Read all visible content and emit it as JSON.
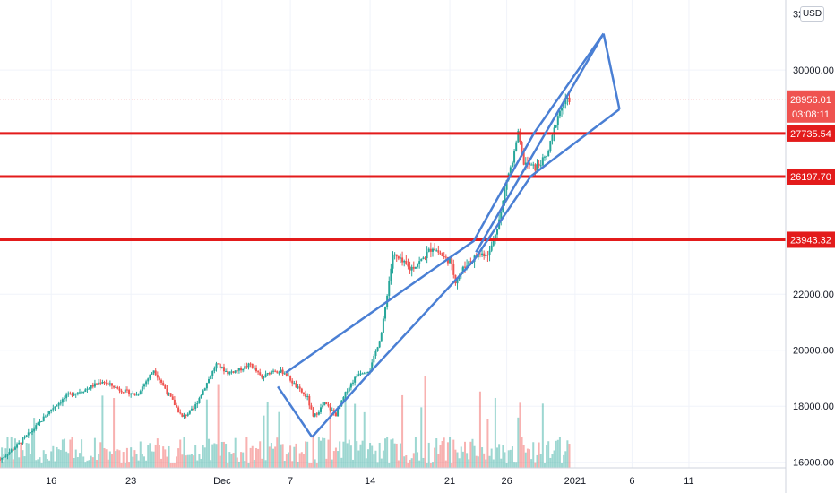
{
  "currency": "USD",
  "chart_data": {
    "type": "candlestick",
    "y_axis": {
      "ticks": [
        16000,
        18000,
        20000,
        22000,
        30000
      ],
      "tick_labels": [
        "16000.00",
        "18000.00",
        "20000.00",
        "22000.00",
        "30000.00"
      ],
      "partial_top_label": "32",
      "range": [
        15800,
        32500
      ]
    },
    "x_axis": {
      "ticks": [
        {
          "day": 16,
          "label": "16"
        },
        {
          "day": 23,
          "label": "23"
        },
        {
          "day": 31,
          "label": "Dec"
        },
        {
          "day": 37,
          "label": "7"
        },
        {
          "day": 44,
          "label": "14"
        },
        {
          "day": 51,
          "label": "21"
        },
        {
          "day": 56,
          "label": "26"
        },
        {
          "day": 62,
          "label": "2021"
        },
        {
          "day": 67,
          "label": "6"
        },
        {
          "day": 72,
          "label": "11"
        }
      ],
      "range": [
        11.5,
        80.5
      ]
    },
    "horizontal_levels": [
      {
        "value": 27735.54,
        "label": "27735.54",
        "color": "#e31b1b"
      },
      {
        "value": 26197.7,
        "label": "26197.70",
        "color": "#e31b1b"
      },
      {
        "value": 23943.32,
        "label": "23943.32",
        "color": "#e31b1b"
      }
    ],
    "last_price": {
      "value": 28956.01,
      "label": "28956.01",
      "countdown": "03:08:11",
      "color": "#ef5350"
    },
    "colors": {
      "up": "#26a69a",
      "down": "#ef5350",
      "drawing": "#4a7fd4",
      "level": "#e31b1b"
    },
    "drawings": {
      "channel_upper": [
        [
          36.6,
          19200
        ],
        [
          53.1,
          23900
        ],
        [
          58.4,
          27750
        ],
        [
          64.5,
          31300
        ]
      ],
      "channel_lower": [
        [
          38.9,
          16900
        ],
        [
          44.2,
          19300
        ],
        [
          53.1,
          23200
        ],
        [
          58.1,
          26200
        ],
        [
          65.9,
          28600
        ]
      ],
      "channel_cap": [
        [
          35.9,
          18700
        ],
        [
          38.9,
          16900
        ]
      ],
      "wedge": [
        {
          "from": [
            53.3,
            23500
          ],
          "to": [
            64.5,
            31300
          ]
        },
        {
          "from": [
            64.5,
            31300
          ],
          "to": [
            65.9,
            28600
          ]
        }
      ]
    },
    "price_path": [
      [
        11.5,
        16100
      ],
      [
        13.0,
        16600
      ],
      [
        14.5,
        17200
      ],
      [
        16.0,
        17900
      ],
      [
        17.5,
        18400
      ],
      [
        19.0,
        18600
      ],
      [
        20.5,
        18900
      ],
      [
        22.0,
        18600
      ],
      [
        23.5,
        18400
      ],
      [
        25.0,
        19300
      ],
      [
        26.5,
        18300
      ],
      [
        27.5,
        17600
      ],
      [
        28.5,
        17900
      ],
      [
        29.5,
        18700
      ],
      [
        30.5,
        19500
      ],
      [
        31.5,
        19200
      ],
      [
        32.5,
        19300
      ],
      [
        33.5,
        19500
      ],
      [
        34.5,
        19000
      ],
      [
        35.5,
        19300
      ],
      [
        36.5,
        19200
      ],
      [
        37.5,
        18700
      ],
      [
        38.5,
        18300
      ],
      [
        39.0,
        17600
      ],
      [
        40.0,
        18100
      ],
      [
        41.0,
        17700
      ],
      [
        42.0,
        18600
      ],
      [
        43.0,
        19200
      ],
      [
        44.0,
        19300
      ],
      [
        45.0,
        20600
      ],
      [
        46.0,
        23400
      ],
      [
        47.5,
        22900
      ],
      [
        48.5,
        23200
      ],
      [
        49.5,
        23700
      ],
      [
        50.5,
        23300
      ],
      [
        51.0,
        23200
      ],
      [
        51.5,
        22500
      ],
      [
        52.5,
        23100
      ],
      [
        53.5,
        23400
      ],
      [
        54.5,
        23500
      ],
      [
        55.0,
        24200
      ],
      [
        55.5,
        24900
      ],
      [
        56.0,
        26100
      ],
      [
        56.5,
        26700
      ],
      [
        57.0,
        27700
      ],
      [
        57.5,
        26700
      ],
      [
        58.5,
        26500
      ],
      [
        59.5,
        26900
      ],
      [
        60.0,
        27600
      ],
      [
        60.5,
        28400
      ],
      [
        61.0,
        28800
      ],
      [
        61.5,
        28956
      ]
    ],
    "volume_max": 1.0
  }
}
